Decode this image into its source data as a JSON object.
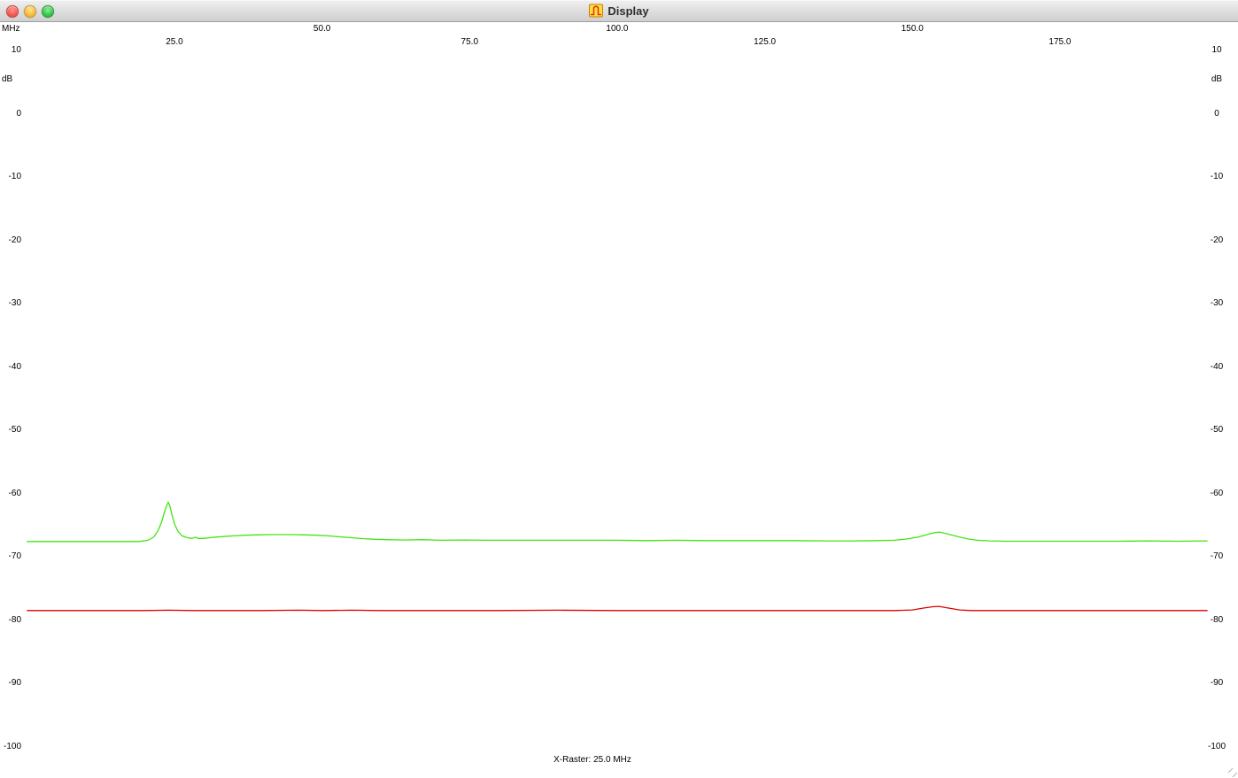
{
  "window": {
    "title": "Display",
    "traffic_light_colors": {
      "close": "#f75c57",
      "minimize": "#fdbd3e",
      "zoom": "#35cb4b"
    },
    "icon": "spectrum-icon"
  },
  "status": {
    "x_raster": "X-Raster: 25.0 MHz"
  },
  "chart_data": {
    "type": "line",
    "title": "",
    "grid": false,
    "legend": false,
    "x_axis": {
      "unit": "MHz",
      "min": 0,
      "max": 200,
      "tick_values": [
        25,
        50,
        75,
        100,
        125,
        150,
        175
      ],
      "tick_labels": [
        "25.0",
        "50.0",
        "75.0",
        "100.0",
        "125.0",
        "150.0",
        "175.0"
      ]
    },
    "y_axis": {
      "unit": "dB",
      "min": -100,
      "max": 10,
      "sides": "both",
      "tick_values": [
        10,
        0,
        -10,
        -20,
        -30,
        -40,
        -50,
        -60,
        -70,
        -80,
        -90,
        -100
      ],
      "tick_labels": [
        "10",
        "0",
        "-10",
        "-20",
        "-30",
        "-40",
        "-50",
        "-60",
        "-70",
        "-80",
        "-90",
        "-100"
      ]
    },
    "series": [
      {
        "name": "trace-green",
        "color": "#44e410",
        "points": [
          [
            0,
            -67.6
          ],
          [
            4,
            -67.6
          ],
          [
            8,
            -67.6
          ],
          [
            12,
            -67.6
          ],
          [
            16,
            -67.6
          ],
          [
            19,
            -67.6
          ],
          [
            20.5,
            -67.4
          ],
          [
            21.5,
            -66.9
          ],
          [
            22.2,
            -65.9
          ],
          [
            22.8,
            -64.6
          ],
          [
            23.3,
            -63.0
          ],
          [
            23.7,
            -61.9
          ],
          [
            23.95,
            -61.4
          ],
          [
            24.2,
            -61.9
          ],
          [
            24.6,
            -63.4
          ],
          [
            25.0,
            -64.8
          ],
          [
            25.6,
            -66.0
          ],
          [
            26.3,
            -66.7
          ],
          [
            27.2,
            -67.0
          ],
          [
            28.0,
            -67.1
          ],
          [
            28.6,
            -66.9
          ],
          [
            29.0,
            -67.1
          ],
          [
            30,
            -67.1
          ],
          [
            31,
            -67.0
          ],
          [
            32,
            -66.9
          ],
          [
            33.5,
            -66.8
          ],
          [
            35,
            -66.7
          ],
          [
            37,
            -66.6
          ],
          [
            39,
            -66.55
          ],
          [
            41,
            -66.5
          ],
          [
            43,
            -66.5
          ],
          [
            45,
            -66.5
          ],
          [
            47,
            -66.55
          ],
          [
            49,
            -66.6
          ],
          [
            51,
            -66.7
          ],
          [
            53,
            -66.85
          ],
          [
            55,
            -67.0
          ],
          [
            57,
            -67.15
          ],
          [
            59,
            -67.25
          ],
          [
            61,
            -67.3
          ],
          [
            64,
            -67.35
          ],
          [
            67,
            -67.3
          ],
          [
            70,
            -67.4
          ],
          [
            74,
            -67.35
          ],
          [
            78,
            -67.4
          ],
          [
            82,
            -67.4
          ],
          [
            86,
            -67.4
          ],
          [
            90,
            -67.4
          ],
          [
            95,
            -67.4
          ],
          [
            100,
            -67.4
          ],
          [
            105,
            -67.45
          ],
          [
            110,
            -67.4
          ],
          [
            115,
            -67.45
          ],
          [
            120,
            -67.45
          ],
          [
            125,
            -67.45
          ],
          [
            130,
            -67.45
          ],
          [
            135,
            -67.5
          ],
          [
            140,
            -67.5
          ],
          [
            144,
            -67.45
          ],
          [
            147,
            -67.4
          ],
          [
            149,
            -67.2
          ],
          [
            151,
            -66.9
          ],
          [
            152.5,
            -66.5
          ],
          [
            153.8,
            -66.2
          ],
          [
            154.6,
            -66.1
          ],
          [
            155.5,
            -66.3
          ],
          [
            156.8,
            -66.6
          ],
          [
            158,
            -66.9
          ],
          [
            159.5,
            -67.2
          ],
          [
            161,
            -67.4
          ],
          [
            163,
            -67.5
          ],
          [
            166,
            -67.55
          ],
          [
            170,
            -67.55
          ],
          [
            175,
            -67.55
          ],
          [
            180,
            -67.55
          ],
          [
            185,
            -67.55
          ],
          [
            190,
            -67.5
          ],
          [
            195,
            -67.55
          ],
          [
            200,
            -67.5
          ]
        ]
      },
      {
        "name": "trace-red",
        "color": "#dd0000",
        "points": [
          [
            0,
            -78.5
          ],
          [
            10,
            -78.5
          ],
          [
            20,
            -78.5
          ],
          [
            24,
            -78.45
          ],
          [
            28,
            -78.5
          ],
          [
            40,
            -78.5
          ],
          [
            46,
            -78.45
          ],
          [
            50,
            -78.5
          ],
          [
            55,
            -78.45
          ],
          [
            60,
            -78.5
          ],
          [
            70,
            -78.5
          ],
          [
            80,
            -78.5
          ],
          [
            90,
            -78.45
          ],
          [
            100,
            -78.5
          ],
          [
            110,
            -78.5
          ],
          [
            120,
            -78.5
          ],
          [
            130,
            -78.5
          ],
          [
            140,
            -78.5
          ],
          [
            147,
            -78.5
          ],
          [
            150,
            -78.4
          ],
          [
            152,
            -78.1
          ],
          [
            153.5,
            -77.9
          ],
          [
            154.5,
            -77.85
          ],
          [
            156,
            -78.1
          ],
          [
            158,
            -78.4
          ],
          [
            160,
            -78.5
          ],
          [
            170,
            -78.5
          ],
          [
            180,
            -78.5
          ],
          [
            190,
            -78.5
          ],
          [
            200,
            -78.5
          ]
        ]
      }
    ]
  }
}
